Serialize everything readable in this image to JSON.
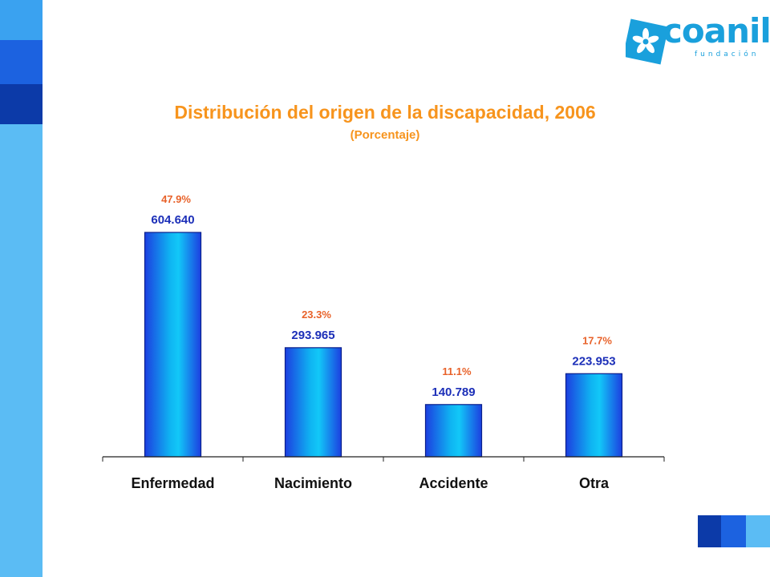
{
  "brand": {
    "name": "coanil",
    "subtitle": "fundación",
    "colors": {
      "accent": "#1aa0dc",
      "title": "#f7941d",
      "percent": "#e8622a",
      "value": "#1c2fb8"
    }
  },
  "chart_data": {
    "type": "bar",
    "title": "Distribución del origen de la discapacidad, 2006",
    "subtitle": "(Porcentaje)",
    "xlabel": "",
    "ylabel": "",
    "categories": [
      "Enfermedad",
      "Nacimiento",
      "Accidente",
      "Otra"
    ],
    "values": [
      604640,
      293965,
      140789,
      223953
    ],
    "value_labels": [
      "604.640",
      "293.965",
      "140.789",
      "223.953"
    ],
    "percent_labels": [
      "47.9%",
      "23.3%",
      "11.1%",
      "17.7%"
    ],
    "ylim": [
      0,
      700000
    ],
    "grid": false,
    "legend": "none"
  }
}
